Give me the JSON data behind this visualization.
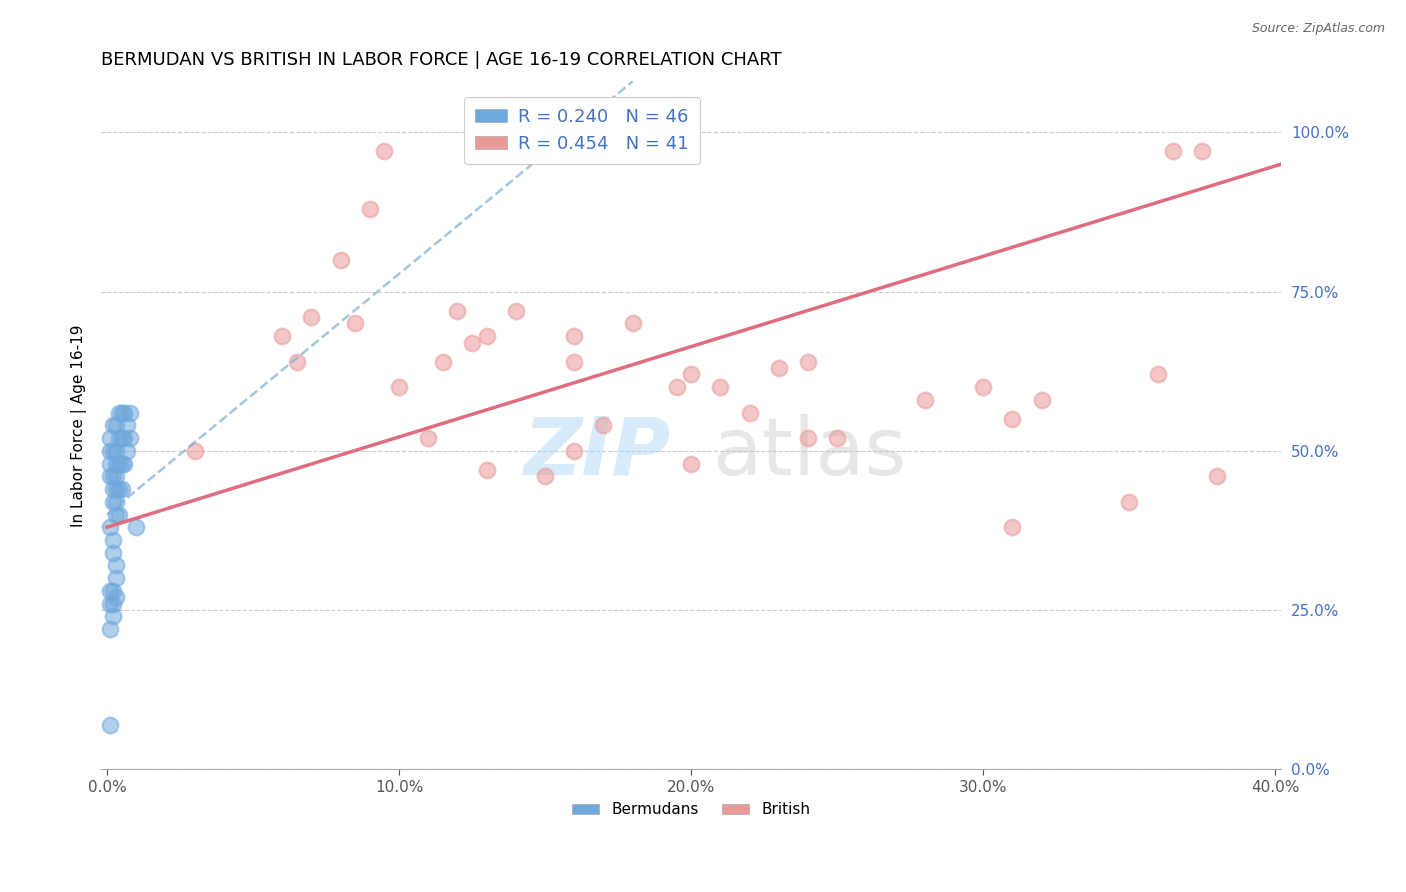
{
  "title": "BERMUDAN VS BRITISH IN LABOR FORCE | AGE 16-19 CORRELATION CHART",
  "source": "Source: ZipAtlas.com",
  "ylabel": "In Labor Force | Age 16-19",
  "xlim": [
    -0.002,
    0.402
  ],
  "ylim": [
    0.0,
    1.08
  ],
  "yticks": [
    0.0,
    0.25,
    0.5,
    0.75,
    1.0
  ],
  "ytick_labels": [
    "0.0%",
    "25.0%",
    "50.0%",
    "75.0%",
    "100.0%"
  ],
  "xticks": [
    0.0,
    0.1,
    0.2,
    0.3,
    0.4
  ],
  "xtick_labels": [
    "0.0%",
    "10.0%",
    "20.0%",
    "30.0%",
    "40.0%"
  ],
  "legend_R_bermudan": "0.240",
  "legend_N_bermudan": "46",
  "legend_R_british": "0.454",
  "legend_N_british": "41",
  "bermudan_color": "#6fa8dc",
  "british_color": "#ea9999",
  "trendline_bermudan_color": "#7bafd4",
  "trendline_british_color": "#e06c80",
  "bermudan_x": [
    0.001,
    0.001,
    0.001,
    0.001,
    0.002,
    0.002,
    0.002,
    0.002,
    0.002,
    0.003,
    0.003,
    0.003,
    0.003,
    0.003,
    0.003,
    0.003,
    0.004,
    0.004,
    0.004,
    0.004,
    0.004,
    0.005,
    0.005,
    0.005,
    0.005,
    0.006,
    0.006,
    0.006,
    0.007,
    0.007,
    0.008,
    0.008,
    0.001,
    0.002,
    0.002,
    0.003,
    0.003,
    0.001,
    0.001,
    0.002,
    0.002,
    0.001,
    0.001,
    0.002,
    0.003,
    0.01
  ],
  "bermudan_y": [
    0.5,
    0.52,
    0.48,
    0.46,
    0.54,
    0.5,
    0.46,
    0.42,
    0.44,
    0.54,
    0.5,
    0.48,
    0.46,
    0.44,
    0.42,
    0.4,
    0.56,
    0.52,
    0.48,
    0.44,
    0.4,
    0.56,
    0.52,
    0.48,
    0.44,
    0.56,
    0.52,
    0.48,
    0.54,
    0.5,
    0.56,
    0.52,
    0.38,
    0.36,
    0.34,
    0.32,
    0.3,
    0.28,
    0.26,
    0.26,
    0.24,
    0.22,
    0.07,
    0.28,
    0.27,
    0.38
  ],
  "british_x": [
    0.03,
    0.06,
    0.065,
    0.07,
    0.08,
    0.085,
    0.09,
    0.095,
    0.1,
    0.11,
    0.115,
    0.12,
    0.125,
    0.13,
    0.14,
    0.15,
    0.16,
    0.16,
    0.17,
    0.18,
    0.195,
    0.2,
    0.21,
    0.22,
    0.23,
    0.24,
    0.25,
    0.28,
    0.3,
    0.31,
    0.32,
    0.35,
    0.36,
    0.375,
    0.13,
    0.16,
    0.2,
    0.24,
    0.31,
    0.365,
    0.38
  ],
  "british_y": [
    0.5,
    0.68,
    0.64,
    0.71,
    0.8,
    0.7,
    0.88,
    0.97,
    0.6,
    0.52,
    0.64,
    0.72,
    0.67,
    0.68,
    0.72,
    0.46,
    0.68,
    0.64,
    0.54,
    0.7,
    0.6,
    0.62,
    0.6,
    0.56,
    0.63,
    0.64,
    0.52,
    0.58,
    0.6,
    0.55,
    0.58,
    0.42,
    0.62,
    0.97,
    0.47,
    0.5,
    0.48,
    0.52,
    0.38,
    0.97,
    0.46
  ],
  "trendline_bermudan_x0": 0.0,
  "trendline_bermudan_y0": 0.4,
  "trendline_bermudan_x1": 0.18,
  "trendline_bermudan_y1": 1.08,
  "trendline_british_x0": 0.0,
  "trendline_british_y0": 0.38,
  "trendline_british_x1": 0.402,
  "trendline_british_y1": 0.95
}
